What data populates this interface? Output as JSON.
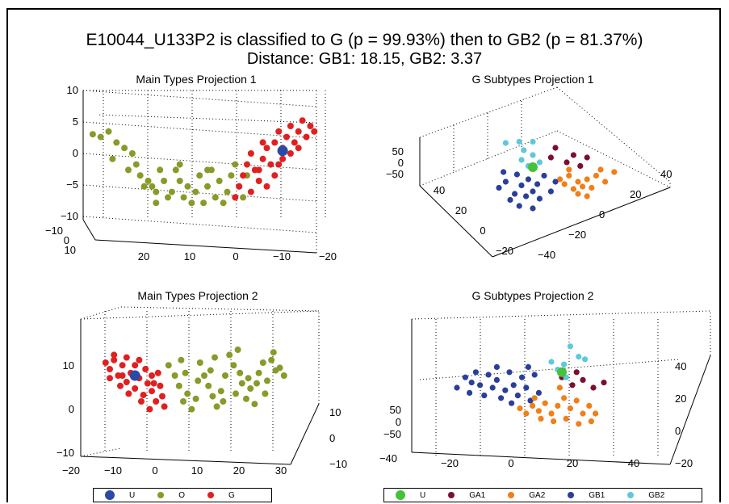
{
  "title_line1": "E10044_U133P2 is classified to G (p = 99.93%) then to GB2 (p = 81.37%)",
  "title_line2": "Distance: GB1: 18.15, GB2: 3.37",
  "colors": {
    "U_main": "#2a4aa6",
    "O": "#8a9a2a",
    "G": "#e02020",
    "U_sub": "#45c23a",
    "GA1": "#7a1030",
    "GA2": "#f07f1a",
    "GB1": "#2a3f9a",
    "GB2": "#5ec8dc"
  },
  "chart_data": [
    {
      "type": "scatter",
      "title": "Main Types Projection 1",
      "axis_ticks": {
        "z": [
          "10",
          "5",
          "0",
          "−5",
          "−10"
        ],
        "x_front": [
          "20",
          "10",
          "0",
          "−10",
          "−20"
        ],
        "y_side": [
          "−10",
          "0",
          "10"
        ]
      },
      "series": [
        {
          "name": "O",
          "points": [
            [
              -24,
              3.5
            ],
            [
              -22,
              3
            ],
            [
              -20,
              4
            ],
            [
              -18,
              2
            ],
            [
              -16,
              1
            ],
            [
              -14,
              0
            ],
            [
              -13,
              -2
            ],
            [
              -12,
              -4
            ],
            [
              -11,
              -6
            ],
            [
              -10,
              -5
            ],
            [
              -9,
              -6
            ],
            [
              -8,
              -7
            ],
            [
              -7,
              -3
            ],
            [
              -6,
              -5
            ],
            [
              -5,
              -8
            ],
            [
              -4,
              -7
            ],
            [
              -3,
              -3
            ],
            [
              -2,
              -5
            ],
            [
              -1,
              -8
            ],
            [
              0,
              -6
            ],
            [
              1,
              -9
            ],
            [
              2,
              -7
            ],
            [
              3,
              -4
            ],
            [
              4,
              -9
            ],
            [
              5,
              -6
            ],
            [
              6,
              -3
            ],
            [
              7,
              -8
            ],
            [
              8,
              -5
            ],
            [
              9,
              -9
            ],
            [
              10,
              -7
            ],
            [
              11,
              -4
            ],
            [
              12,
              -2
            ],
            [
              13,
              -6
            ],
            [
              14,
              -8
            ],
            [
              -19,
              -1
            ],
            [
              -15,
              -3
            ],
            [
              -8,
              -9
            ],
            [
              -2,
              -2
            ],
            [
              5,
              -3
            ],
            [
              15,
              -4
            ]
          ]
        },
        {
          "name": "G",
          "points": [
            [
              12,
              -8
            ],
            [
              13,
              -6
            ],
            [
              14,
              -4
            ],
            [
              15,
              -2
            ],
            [
              16,
              0
            ],
            [
              17,
              -3
            ],
            [
              18,
              -5
            ],
            [
              19,
              -1
            ],
            [
              20,
              1
            ],
            [
              21,
              -2
            ],
            [
              22,
              2
            ],
            [
              23,
              4
            ],
            [
              24,
              1
            ],
            [
              25,
              3
            ],
            [
              26,
              5
            ],
            [
              27,
              2
            ],
            [
              28,
              4
            ],
            [
              29,
              6
            ],
            [
              30,
              3
            ],
            [
              31,
              5
            ],
            [
              32,
              4
            ],
            [
              16,
              -7
            ],
            [
              18,
              -3
            ],
            [
              20,
              -6
            ],
            [
              22,
              -4
            ],
            [
              24,
              -1
            ],
            [
              26,
              0
            ],
            [
              28,
              1
            ],
            [
              19,
              2
            ],
            [
              23,
              -2
            ]
          ]
        },
        {
          "name": "U",
          "points": [
            [
              24,
              0.5
            ]
          ]
        }
      ]
    },
    {
      "type": "scatter",
      "title": "G Subtypes Projection 1",
      "axis_ticks": {
        "z": [
          "50",
          "0",
          "−50"
        ],
        "left_axis": [
          "40",
          "20",
          "0",
          "−20"
        ],
        "right_axis": [
          "−40",
          "−20",
          "0",
          "20",
          "40"
        ]
      },
      "series": [
        {
          "name": "GA1",
          "points": [
            [
              0.6,
              0.78
            ],
            [
              0.68,
              0.72
            ],
            [
              0.74,
              0.7
            ],
            [
              0.65,
              0.66
            ],
            [
              0.58,
              0.7
            ],
            [
              0.71,
              0.63
            ]
          ]
        },
        {
          "name": "GA2",
          "points": [
            [
              0.66,
              0.55
            ],
            [
              0.7,
              0.5
            ],
            [
              0.74,
              0.52
            ],
            [
              0.78,
              0.55
            ],
            [
              0.72,
              0.46
            ],
            [
              0.68,
              0.44
            ],
            [
              0.76,
              0.45
            ],
            [
              0.82,
              0.5
            ],
            [
              0.64,
              0.48
            ],
            [
              0.7,
              0.4
            ],
            [
              0.74,
              0.38
            ],
            [
              0.8,
              0.6
            ],
            [
              0.62,
              0.52
            ],
            [
              0.86,
              0.58
            ],
            [
              0.66,
              0.6
            ]
          ]
        },
        {
          "name": "GB1",
          "points": [
            [
              0.35,
              0.45
            ],
            [
              0.38,
              0.5
            ],
            [
              0.42,
              0.4
            ],
            [
              0.45,
              0.47
            ],
            [
              0.48,
              0.52
            ],
            [
              0.5,
              0.42
            ],
            [
              0.52,
              0.48
            ],
            [
              0.55,
              0.55
            ],
            [
              0.4,
              0.35
            ],
            [
              0.47,
              0.38
            ],
            [
              0.53,
              0.36
            ],
            [
              0.58,
              0.42
            ],
            [
              0.44,
              0.3
            ],
            [
              0.5,
              0.28
            ],
            [
              0.37,
              0.58
            ],
            [
              0.6,
              0.5
            ],
            [
              0.43,
              0.56
            ]
          ]
        },
        {
          "name": "GB2",
          "points": [
            [
              0.38,
              0.82
            ],
            [
              0.44,
              0.83
            ],
            [
              0.5,
              0.83
            ],
            [
              0.46,
              0.76
            ],
            [
              0.5,
              0.72
            ],
            [
              0.45,
              0.68
            ],
            [
              0.48,
              0.63
            ],
            [
              0.53,
              0.66
            ]
          ]
        },
        {
          "name": "U",
          "points": [
            [
              0.5,
              0.62
            ]
          ]
        }
      ]
    },
    {
      "type": "scatter",
      "title": "Main Types Projection 2",
      "axis_ticks": {
        "z": [
          "10",
          "0",
          "−10"
        ],
        "x_front": [
          "−20",
          "−10",
          "0",
          "10",
          "20",
          "30"
        ],
        "y_side": [
          "10",
          "0",
          "−10"
        ]
      },
      "series": [
        {
          "name": "G",
          "points": [
            [
              0.08,
              0.6
            ],
            [
              0.1,
              0.55
            ],
            [
              0.12,
              0.62
            ],
            [
              0.14,
              0.5
            ],
            [
              0.16,
              0.58
            ],
            [
              0.18,
              0.45
            ],
            [
              0.2,
              0.52
            ],
            [
              0.22,
              0.4
            ],
            [
              0.24,
              0.48
            ],
            [
              0.26,
              0.35
            ],
            [
              0.28,
              0.44
            ],
            [
              0.3,
              0.38
            ],
            [
              0.32,
              0.3
            ],
            [
              0.34,
              0.42
            ],
            [
              0.36,
              0.26
            ],
            [
              0.1,
              0.48
            ],
            [
              0.15,
              0.42
            ],
            [
              0.22,
              0.58
            ],
            [
              0.27,
              0.55
            ],
            [
              0.3,
              0.5
            ],
            [
              0.33,
              0.52
            ],
            [
              0.19,
              0.36
            ],
            [
              0.25,
              0.3
            ],
            [
              0.29,
              0.24
            ],
            [
              0.12,
              0.66
            ],
            [
              0.18,
              0.64
            ],
            [
              0.24,
              0.62
            ],
            [
              0.35,
              0.34
            ],
            [
              0.16,
              0.5
            ],
            [
              0.31,
              0.44
            ]
          ]
        },
        {
          "name": "O",
          "points": [
            [
              0.38,
              0.58
            ],
            [
              0.41,
              0.5
            ],
            [
              0.43,
              0.42
            ],
            [
              0.45,
              0.3
            ],
            [
              0.47,
              0.36
            ],
            [
              0.49,
              0.24
            ],
            [
              0.51,
              0.32
            ],
            [
              0.53,
              0.6
            ],
            [
              0.55,
              0.5
            ],
            [
              0.57,
              0.42
            ],
            [
              0.59,
              0.34
            ],
            [
              0.61,
              0.26
            ],
            [
              0.63,
              0.38
            ],
            [
              0.65,
              0.5
            ],
            [
              0.67,
              0.66
            ],
            [
              0.69,
              0.58
            ],
            [
              0.71,
              0.7
            ],
            [
              0.73,
              0.44
            ],
            [
              0.75,
              0.32
            ],
            [
              0.77,
              0.4
            ],
            [
              0.79,
              0.28
            ],
            [
              0.81,
              0.52
            ],
            [
              0.83,
              0.6
            ],
            [
              0.85,
              0.46
            ],
            [
              0.87,
              0.62
            ],
            [
              0.89,
              0.54
            ],
            [
              0.91,
              0.56
            ],
            [
              0.93,
              0.5
            ],
            [
              0.46,
              0.52
            ],
            [
              0.52,
              0.46
            ],
            [
              0.58,
              0.54
            ],
            [
              0.64,
              0.3
            ],
            [
              0.7,
              0.36
            ],
            [
              0.76,
              0.48
            ],
            [
              0.84,
              0.36
            ],
            [
              0.88,
              0.68
            ],
            [
              0.44,
              0.62
            ],
            [
              0.6,
              0.64
            ],
            [
              0.72,
              0.52
            ],
            [
              0.8,
              0.44
            ]
          ]
        },
        {
          "name": "U",
          "points": [
            [
              0.22,
              0.5
            ]
          ]
        }
      ]
    },
    {
      "type": "scatter",
      "title": "G Subtypes Projection 2",
      "axis_ticks": {
        "z": [
          "50",
          "0",
          "−50"
        ],
        "x_front": [
          "−40",
          "−20",
          "0",
          "20",
          "40"
        ],
        "y_side": [
          "40",
          "20",
          "0",
          "−20"
        ]
      },
      "series": [
        {
          "name": "GB1",
          "points": [
            [
              0.1,
              0.5
            ],
            [
              0.14,
              0.58
            ],
            [
              0.16,
              0.46
            ],
            [
              0.19,
              0.62
            ],
            [
              0.21,
              0.52
            ],
            [
              0.23,
              0.44
            ],
            [
              0.25,
              0.6
            ],
            [
              0.27,
              0.5
            ],
            [
              0.29,
              0.56
            ],
            [
              0.31,
              0.42
            ],
            [
              0.33,
              0.48
            ],
            [
              0.35,
              0.62
            ],
            [
              0.37,
              0.52
            ],
            [
              0.39,
              0.44
            ],
            [
              0.41,
              0.58
            ],
            [
              0.43,
              0.5
            ],
            [
              0.45,
              0.4
            ],
            [
              0.47,
              0.6
            ],
            [
              0.49,
              0.46
            ],
            [
              0.17,
              0.54
            ],
            [
              0.29,
              0.66
            ],
            [
              0.36,
              0.38
            ],
            [
              0.44,
              0.66
            ]
          ]
        },
        {
          "name": "GA2",
          "points": [
            [
              0.4,
              0.34
            ],
            [
              0.43,
              0.3
            ],
            [
              0.46,
              0.36
            ],
            [
              0.49,
              0.32
            ],
            [
              0.52,
              0.38
            ],
            [
              0.55,
              0.3
            ],
            [
              0.58,
              0.36
            ],
            [
              0.61,
              0.42
            ],
            [
              0.64,
              0.34
            ],
            [
              0.67,
              0.4
            ],
            [
              0.7,
              0.3
            ],
            [
              0.73,
              0.36
            ],
            [
              0.76,
              0.3
            ],
            [
              0.5,
              0.26
            ],
            [
              0.56,
              0.24
            ],
            [
              0.62,
              0.26
            ],
            [
              0.68,
              0.22
            ],
            [
              0.74,
              0.24
            ],
            [
              0.47,
              0.42
            ],
            [
              0.59,
              0.5
            ]
          ]
        },
        {
          "name": "GA1",
          "points": [
            [
              0.6,
              0.58
            ],
            [
              0.65,
              0.52
            ],
            [
              0.7,
              0.56
            ],
            [
              0.75,
              0.5
            ],
            [
              0.8,
              0.54
            ],
            [
              0.67,
              0.62
            ]
          ]
        },
        {
          "name": "GB2",
          "points": [
            [
              0.55,
              0.7
            ],
            [
              0.58,
              0.64
            ],
            [
              0.61,
              0.68
            ],
            [
              0.64,
              0.82
            ],
            [
              0.68,
              0.74
            ],
            [
              0.71,
              0.72
            ],
            [
              0.62,
              0.58
            ]
          ]
        },
        {
          "name": "U",
          "points": [
            [
              0.6,
              0.62
            ]
          ]
        }
      ]
    }
  ],
  "legend_main": [
    "U",
    "O",
    "G"
  ],
  "legend_sub": [
    "U",
    "GA1",
    "GA2",
    "GB1",
    "GB2"
  ]
}
